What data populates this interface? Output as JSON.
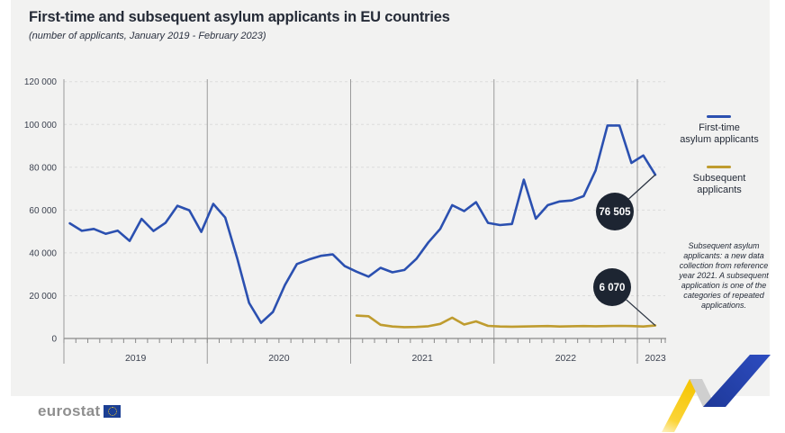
{
  "title": "First-time and subsequent asylum applicants in EU countries",
  "subtitle": "(number of applicants, January 2019 - February 2023)",
  "legend": {
    "items": [
      {
        "name": "first-time",
        "lines": [
          "First-time",
          "asylum applicants"
        ]
      },
      {
        "name": "subsequent",
        "lines": [
          "Subsequent",
          "applicants"
        ]
      }
    ]
  },
  "annotation_note": "Subsequent asylum applicants: a new data collection from reference year 2021. A subsequent application is one of the categories of repeated applications.",
  "logo_text": "eurostat",
  "colors": {
    "first_time_line": "#2b50b0",
    "subsequent_line": "#bf9c2f",
    "label_bubble": "#1d2532",
    "label_bubble_text": "#ffffff",
    "panel_background": "#f2f2f1",
    "gridline": "#dcdcdc",
    "axis": "#8a8a8a",
    "ribbon_yellow": "#f5c400",
    "ribbon_gray": "#cfcfcf",
    "ribbon_blue": "#2745b0"
  },
  "chart_data": {
    "type": "line",
    "x_unit": "month",
    "x_start": "2019-01",
    "x_end": "2023-02",
    "n_points": 50,
    "year_labels": [
      "2019",
      "2020",
      "2021",
      "2022",
      "2023"
    ],
    "ylim": [
      0,
      120000
    ],
    "y_ticks": [
      0,
      20000,
      40000,
      60000,
      80000,
      100000,
      120000
    ],
    "y_tick_labels": [
      "0",
      "20 000",
      "40 000",
      "60 000",
      "80 000",
      "100 000",
      "120 000"
    ],
    "grid": "dashed-horizontal",
    "legend_position": "right",
    "series": [
      {
        "name": "First-time asylum applicants",
        "color": "#2b50b0",
        "start_index": 0,
        "values": [
          53800,
          50300,
          51200,
          48900,
          50400,
          45600,
          55900,
          50200,
          54000,
          62000,
          59900,
          49800,
          62900,
          56500,
          37600,
          16600,
          7300,
          12400,
          25000,
          34800,
          36900,
          38600,
          39300,
          33800,
          31200,
          28900,
          33000,
          30900,
          32000,
          37200,
          44900,
          51200,
          62300,
          59500,
          63700,
          54000,
          53000,
          53500,
          74200,
          56000,
          62300,
          64000,
          64500,
          66500,
          78500,
          99500,
          99500,
          82000,
          85500,
          76505
        ]
      },
      {
        "name": "Subsequent applicants",
        "color": "#bf9c2f",
        "start_index": 24,
        "values": [
          10700,
          10400,
          6400,
          5600,
          5300,
          5400,
          5700,
          6800,
          9700,
          6500,
          8000,
          5900,
          5600,
          5500,
          5600,
          5700,
          5800,
          5600,
          5700,
          5800,
          5700,
          5800,
          5900,
          5800,
          5600,
          6070
        ]
      }
    ],
    "annotations": [
      {
        "text": "76 505",
        "value": 76505,
        "series": "First-time asylum applicants",
        "x": "2023-02"
      },
      {
        "text": "6 070",
        "value": 6070,
        "series": "Subsequent applicants",
        "x": "2023-02"
      }
    ]
  }
}
